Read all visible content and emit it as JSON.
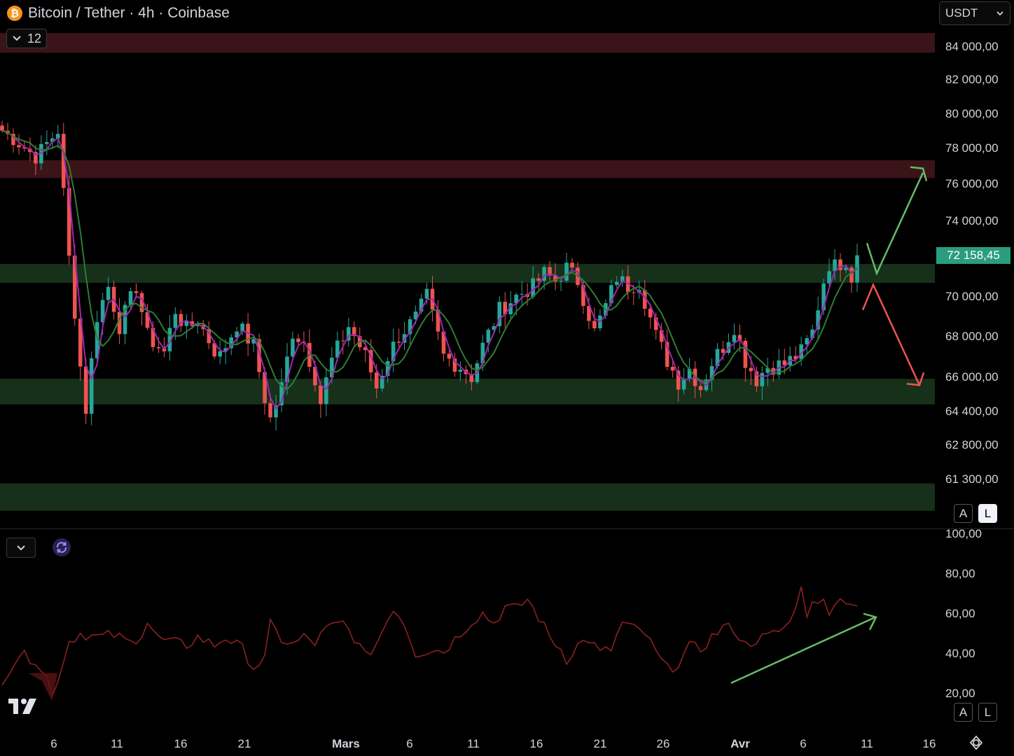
{
  "header": {
    "title": "Bitcoin / Tether · 4h · Coinbase",
    "coin_symbol": "₿",
    "collapse_count": "12"
  },
  "currency_selector": {
    "value": "USDT"
  },
  "last_price": "72 158,45",
  "scale_buttons_main": {
    "auto": "A",
    "log": "L"
  },
  "scale_buttons_indicator": {
    "auto": "A",
    "log": "L"
  },
  "colors": {
    "up": "#26a69a",
    "down": "#ef5350",
    "ma_fast": "#9c27b0",
    "ma_slow": "#2e7d32",
    "support_zone": "#16301a",
    "resistance_zone": "#3a1418",
    "rsi_line": "#8b2020",
    "arrow_green": "#66bb6a",
    "arrow_red": "#ef5350"
  },
  "chart_data": [
    {
      "type": "candlestick",
      "title": "Bitcoin / Tether · 4h · Coinbase",
      "ylabels": [
        "84 000,00",
        "82 000,00",
        "80 000,00",
        "78 000,00",
        "76 000,00",
        "74 000,00",
        "70 000,00",
        "68 000,00",
        "66 000,00",
        "64 400,00",
        "62 800,00",
        "61 300,00"
      ],
      "xlabels": [
        "6",
        "11",
        "16",
        "21",
        "Mars",
        "6",
        "11",
        "16",
        "21",
        "26",
        "Avr",
        "6",
        "11",
        "16"
      ],
      "ylim": [
        60000,
        86500
      ],
      "zones": [
        {
          "kind": "resistance",
          "from": 83600,
          "to": 84800
        },
        {
          "kind": "resistance",
          "from": 76300,
          "to": 77300
        },
        {
          "kind": "support",
          "from": 70700,
          "to": 71700
        },
        {
          "kind": "support",
          "from": 64700,
          "to": 65900
        },
        {
          "kind": "support",
          "from": 59900,
          "to": 61100
        }
      ],
      "close_path": [
        [
          0,
          79000
        ],
        [
          6,
          77500
        ],
        [
          10,
          79000
        ],
        [
          12,
          72000
        ],
        [
          14,
          66500
        ],
        [
          15,
          64500
        ],
        [
          17,
          69000
        ],
        [
          19,
          70500
        ],
        [
          21,
          68500
        ],
        [
          24,
          70500
        ],
        [
          26,
          68000
        ],
        [
          29,
          67200
        ],
        [
          31,
          69300
        ],
        [
          33,
          68300
        ],
        [
          35,
          68800
        ],
        [
          37,
          67800
        ],
        [
          38,
          67300
        ],
        [
          39,
          67000
        ],
        [
          42,
          68600
        ],
        [
          45,
          67500
        ],
        [
          47,
          65000
        ],
        [
          48,
          64000
        ],
        [
          50,
          65500
        ],
        [
          52,
          68200
        ],
        [
          54,
          67700
        ],
        [
          56,
          66000
        ],
        [
          57,
          64800
        ],
        [
          59,
          66800
        ],
        [
          62,
          68500
        ],
        [
          65,
          67000
        ],
        [
          67,
          65500
        ],
        [
          69,
          67000
        ],
        [
          71,
          68000
        ],
        [
          74,
          68900
        ],
        [
          76,
          70000
        ],
        [
          79,
          67000
        ],
        [
          82,
          66500
        ],
        [
          84,
          66000
        ],
        [
          86,
          67500
        ],
        [
          89,
          69300
        ],
        [
          92,
          70000
        ],
        [
          95,
          70500
        ],
        [
          97,
          71200
        ],
        [
          99,
          70800
        ],
        [
          101,
          71500
        ],
        [
          103,
          70800
        ],
        [
          106,
          68200
        ],
        [
          108,
          69500
        ],
        [
          110,
          71000
        ],
        [
          112,
          70500
        ],
        [
          114,
          70700
        ],
        [
          117,
          68000
        ],
        [
          119,
          66800
        ],
        [
          121,
          65800
        ],
        [
          123,
          66400
        ],
        [
          125,
          65500
        ],
        [
          127,
          66700
        ],
        [
          129,
          67500
        ],
        [
          131,
          68500
        ],
        [
          133,
          66800
        ],
        [
          135,
          65900
        ],
        [
          137,
          66500
        ],
        [
          140,
          66600
        ],
        [
          141,
          66800
        ],
        [
          143,
          67200
        ],
        [
          145,
          68200
        ],
        [
          146,
          69500
        ],
        [
          147,
          70800
        ],
        [
          148,
          71700
        ],
        [
          149,
          71600
        ],
        [
          151,
          71900
        ],
        [
          152,
          71000
        ],
        [
          153,
          72158
        ]
      ],
      "n_candles": 154,
      "series": [
        {
          "name": "MA fast",
          "type": "line"
        },
        {
          "name": "MA slow",
          "type": "line"
        }
      ],
      "annotations": [
        {
          "kind": "arrow",
          "color": "green",
          "direction": "up",
          "from_price": 72800,
          "via_price": 71200,
          "to_price": 76600
        },
        {
          "kind": "arrow",
          "color": "red",
          "direction": "down",
          "from_price": 69300,
          "via_price": 70600,
          "to_price": 65600
        }
      ]
    },
    {
      "type": "line",
      "ylabels": [
        "100,00",
        "80,00",
        "60,00",
        "40,00",
        "20,00"
      ],
      "ylim": [
        20,
        100
      ],
      "rsi_path": [
        [
          0,
          27
        ],
        [
          3,
          39
        ],
        [
          6,
          37
        ],
        [
          8,
          28
        ],
        [
          9,
          18
        ],
        [
          10,
          28
        ],
        [
          12,
          46
        ],
        [
          14,
          50
        ],
        [
          17,
          48
        ],
        [
          20,
          49
        ],
        [
          23,
          45
        ],
        [
          25,
          50
        ],
        [
          26,
          56
        ],
        [
          28,
          47
        ],
        [
          31,
          45
        ],
        [
          33,
          44
        ],
        [
          35,
          48
        ],
        [
          38,
          44
        ],
        [
          40,
          48
        ],
        [
          43,
          42
        ],
        [
          45,
          33
        ],
        [
          47,
          37
        ],
        [
          48,
          54
        ],
        [
          50,
          47
        ],
        [
          52,
          44
        ],
        [
          54,
          48
        ],
        [
          56,
          45
        ],
        [
          58,
          52
        ],
        [
          61,
          55
        ],
        [
          63,
          48
        ],
        [
          65,
          38
        ],
        [
          67,
          45
        ],
        [
          70,
          63
        ],
        [
          72,
          55
        ],
        [
          74,
          40
        ],
        [
          77,
          42
        ],
        [
          79,
          41
        ],
        [
          82,
          50
        ],
        [
          84,
          56
        ],
        [
          86,
          60
        ],
        [
          88,
          55
        ],
        [
          90,
          63
        ],
        [
          92,
          62
        ],
        [
          94,
          67
        ],
        [
          96,
          58
        ],
        [
          98,
          48
        ],
        [
          100,
          42
        ],
        [
          101,
          37
        ],
        [
          103,
          44
        ],
        [
          105,
          47
        ],
        [
          107,
          40
        ],
        [
          109,
          42
        ],
        [
          111,
          55
        ],
        [
          113,
          52
        ],
        [
          115,
          50
        ],
        [
          117,
          40
        ],
        [
          119,
          32
        ],
        [
          121,
          35
        ],
        [
          123,
          43
        ],
        [
          125,
          42
        ],
        [
          127,
          48
        ],
        [
          129,
          53
        ],
        [
          131,
          52
        ],
        [
          133,
          44
        ],
        [
          135,
          47
        ],
        [
          137,
          48
        ],
        [
          139,
          51
        ],
        [
          141,
          55
        ],
        [
          142,
          65
        ],
        [
          143,
          72
        ],
        [
          144,
          60
        ],
        [
          145,
          68
        ],
        [
          146,
          63
        ],
        [
          147,
          66
        ],
        [
          148,
          62
        ],
        [
          149,
          66
        ],
        [
          151,
          67
        ],
        [
          153,
          64
        ]
      ],
      "annotations": [
        {
          "kind": "arrow",
          "color": "green",
          "direction": "up",
          "from_value": 25,
          "to_value": 58
        }
      ]
    }
  ]
}
